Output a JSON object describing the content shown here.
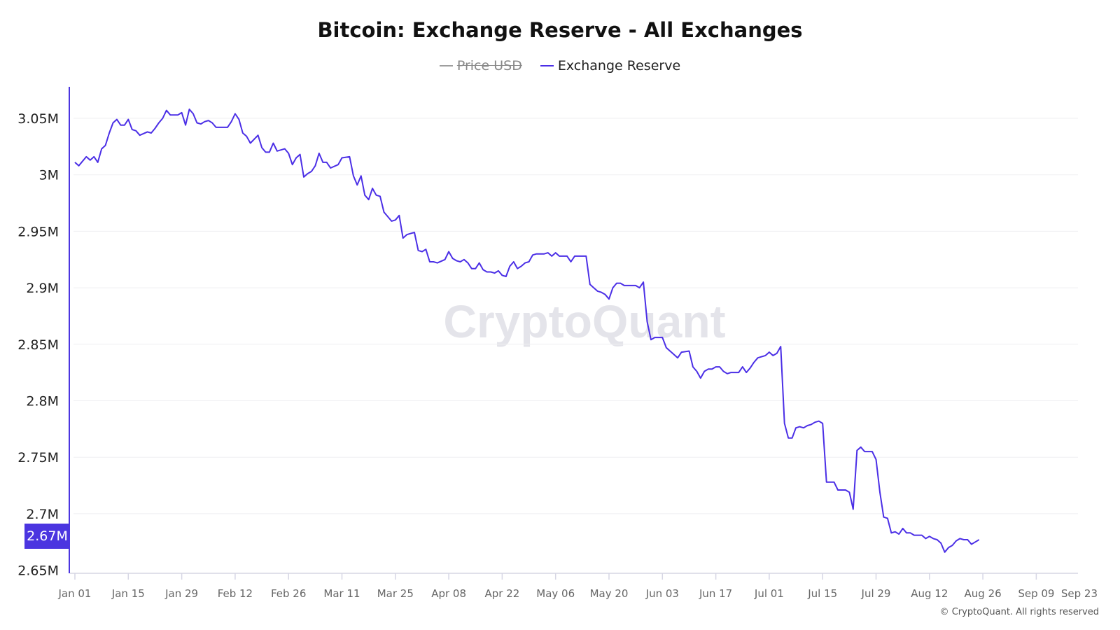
{
  "chart_data": {
    "type": "line",
    "title": "Bitcoin: Exchange Reserve - All Exchanges",
    "legend": [
      {
        "name": "Price USD",
        "color": "#9e9e9e",
        "hidden": true
      },
      {
        "name": "Exchange Reserve",
        "color": "#4b2fe6",
        "hidden": false
      }
    ],
    "legend_placement": "top-center",
    "xlabel": "",
    "ylabel": "",
    "x_ticks": [
      "Jan 01",
      "Jan 15",
      "Jan 29",
      "Feb 12",
      "Feb 26",
      "Mar 11",
      "Mar 25",
      "Apr 08",
      "Apr 22",
      "May 06",
      "May 20",
      "Jun 03",
      "Jun 17",
      "Jul 01",
      "Jul 15",
      "Jul 29",
      "Aug 12",
      "Aug 26",
      "Sep 09",
      "Sep 23"
    ],
    "y_ticks": [
      "2.65M",
      "2.7M",
      "2.75M",
      "2.8M",
      "2.85M",
      "2.9M",
      "2.95M",
      "3M",
      "3.05M"
    ],
    "y_tick_values": [
      2.65,
      2.7,
      2.75,
      2.8,
      2.85,
      2.9,
      2.95,
      3.0,
      3.05
    ],
    "ylim": [
      2.65,
      3.075
    ],
    "xlim": [
      "Jan 01",
      "Sep 20"
    ],
    "y_unit": "M",
    "grid": "horizontal",
    "current_value_label": "2.67M",
    "watermark": "CryptoQuant",
    "copyright": "© CryptoQuant. All rights reserved",
    "series": [
      {
        "name": "Exchange Reserve",
        "color": "#4b2fe6",
        "points": [
          [
            "Jan 01",
            3.011
          ],
          [
            "Jan 02",
            3.008
          ],
          [
            "Jan 04",
            3.016
          ],
          [
            "Jan 05",
            3.013
          ],
          [
            "Jan 06",
            3.016
          ],
          [
            "Jan 07",
            3.011
          ],
          [
            "Jan 08",
            3.023
          ],
          [
            "Jan 09",
            3.026
          ],
          [
            "Jan 10",
            3.037
          ],
          [
            "Jan 11",
            3.046
          ],
          [
            "Jan 12",
            3.049
          ],
          [
            "Jan 13",
            3.044
          ],
          [
            "Jan 14",
            3.044
          ],
          [
            "Jan 15",
            3.049
          ],
          [
            "Jan 16",
            3.04
          ],
          [
            "Jan 17",
            3.039
          ],
          [
            "Jan 18",
            3.035
          ],
          [
            "Jan 20",
            3.038
          ],
          [
            "Jan 21",
            3.037
          ],
          [
            "Jan 22",
            3.041
          ],
          [
            "Jan 23",
            3.046
          ],
          [
            "Jan 24",
            3.05
          ],
          [
            "Jan 25",
            3.057
          ],
          [
            "Jan 26",
            3.053
          ],
          [
            "Jan 28",
            3.053
          ],
          [
            "Jan 29",
            3.055
          ],
          [
            "Jan 30",
            3.044
          ],
          [
            "Jan 31",
            3.058
          ],
          [
            "Feb 01",
            3.054
          ],
          [
            "Feb 02",
            3.046
          ],
          [
            "Feb 03",
            3.045
          ],
          [
            "Feb 04",
            3.047
          ],
          [
            "Feb 05",
            3.048
          ],
          [
            "Feb 06",
            3.046
          ],
          [
            "Feb 07",
            3.042
          ],
          [
            "Feb 09",
            3.042
          ],
          [
            "Feb 10",
            3.042
          ],
          [
            "Feb 11",
            3.047
          ],
          [
            "Feb 12",
            3.054
          ],
          [
            "Feb 13",
            3.049
          ],
          [
            "Feb 14",
            3.037
          ],
          [
            "Feb 15",
            3.034
          ],
          [
            "Feb 16",
            3.028
          ],
          [
            "Feb 18",
            3.035
          ],
          [
            "Feb 19",
            3.024
          ],
          [
            "Feb 20",
            3.02
          ],
          [
            "Feb 21",
            3.02
          ],
          [
            "Feb 22",
            3.028
          ],
          [
            "Feb 23",
            3.021
          ],
          [
            "Feb 25",
            3.023
          ],
          [
            "Feb 26",
            3.019
          ],
          [
            "Feb 27",
            3.009
          ],
          [
            "Feb 28",
            3.015
          ],
          [
            "Feb 29",
            3.018
          ],
          [
            "Mar 01",
            2.998
          ],
          [
            "Mar 02",
            3.001
          ],
          [
            "Mar 03",
            3.003
          ],
          [
            "Mar 04",
            3.008
          ],
          [
            "Mar 05",
            3.019
          ],
          [
            "Mar 06",
            3.011
          ],
          [
            "Mar 07",
            3.011
          ],
          [
            "Mar 08",
            3.006
          ],
          [
            "Mar 10",
            3.009
          ],
          [
            "Mar 11",
            3.015
          ],
          [
            "Mar 13",
            3.016
          ],
          [
            "Mar 14",
            2.999
          ],
          [
            "Mar 15",
            2.991
          ],
          [
            "Mar 16",
            2.999
          ],
          [
            "Mar 17",
            2.982
          ],
          [
            "Mar 18",
            2.978
          ],
          [
            "Mar 19",
            2.988
          ],
          [
            "Mar 20",
            2.982
          ],
          [
            "Mar 21",
            2.981
          ],
          [
            "Mar 22",
            2.967
          ],
          [
            "Mar 23",
            2.963
          ],
          [
            "Mar 24",
            2.959
          ],
          [
            "Mar 25",
            2.96
          ],
          [
            "Mar 26",
            2.964
          ],
          [
            "Mar 27",
            2.944
          ],
          [
            "Mar 28",
            2.947
          ],
          [
            "Mar 29",
            2.948
          ],
          [
            "Mar 30",
            2.949
          ],
          [
            "Mar 31",
            2.933
          ],
          [
            "Apr 01",
            2.932
          ],
          [
            "Apr 02",
            2.934
          ],
          [
            "Apr 03",
            2.923
          ],
          [
            "Apr 04",
            2.923
          ],
          [
            "Apr 05",
            2.922
          ],
          [
            "Apr 07",
            2.925
          ],
          [
            "Apr 08",
            2.932
          ],
          [
            "Apr 09",
            2.926
          ],
          [
            "Apr 10",
            2.924
          ],
          [
            "Apr 11",
            2.923
          ],
          [
            "Apr 12",
            2.925
          ],
          [
            "Apr 13",
            2.922
          ],
          [
            "Apr 14",
            2.917
          ],
          [
            "Apr 15",
            2.917
          ],
          [
            "Apr 16",
            2.922
          ],
          [
            "Apr 17",
            2.916
          ],
          [
            "Apr 18",
            2.914
          ],
          [
            "Apr 19",
            2.914
          ],
          [
            "Apr 20",
            2.913
          ],
          [
            "Apr 21",
            2.915
          ],
          [
            "Apr 22",
            2.911
          ],
          [
            "Apr 23",
            2.91
          ],
          [
            "Apr 24",
            2.919
          ],
          [
            "Apr 25",
            2.923
          ],
          [
            "Apr 26",
            2.917
          ],
          [
            "Apr 27",
            2.919
          ],
          [
            "Apr 28",
            2.922
          ],
          [
            "Apr 29",
            2.923
          ],
          [
            "Apr 30",
            2.929
          ],
          [
            "May 01",
            2.93
          ],
          [
            "May 03",
            2.93
          ],
          [
            "May 04",
            2.931
          ],
          [
            "May 05",
            2.928
          ],
          [
            "May 06",
            2.931
          ],
          [
            "May 07",
            2.928
          ],
          [
            "May 08",
            2.928
          ],
          [
            "May 09",
            2.928
          ],
          [
            "May 10",
            2.923
          ],
          [
            "May 11",
            2.928
          ],
          [
            "May 12",
            2.928
          ],
          [
            "May 13",
            2.928
          ],
          [
            "May 14",
            2.928
          ],
          [
            "May 15",
            2.903
          ],
          [
            "May 16",
            2.9
          ],
          [
            "May 17",
            2.897
          ],
          [
            "May 18",
            2.896
          ],
          [
            "May 19",
            2.894
          ],
          [
            "May 20",
            2.89
          ],
          [
            "May 21",
            2.9
          ],
          [
            "May 22",
            2.904
          ],
          [
            "May 23",
            2.904
          ],
          [
            "May 24",
            2.902
          ],
          [
            "May 25",
            2.902
          ],
          [
            "May 26",
            2.902
          ],
          [
            "May 27",
            2.902
          ],
          [
            "May 28",
            2.9
          ],
          [
            "May 29",
            2.905
          ],
          [
            "May 30",
            2.87
          ],
          [
            "May 31",
            2.854
          ],
          [
            "Jun 01",
            2.856
          ],
          [
            "Jun 03",
            2.856
          ],
          [
            "Jun 04",
            2.847
          ],
          [
            "Jun 05",
            2.844
          ],
          [
            "Jun 06",
            2.841
          ],
          [
            "Jun 07",
            2.838
          ],
          [
            "Jun 08",
            2.843
          ],
          [
            "Jun 10",
            2.844
          ],
          [
            "Jun 11",
            2.83
          ],
          [
            "Jun 12",
            2.826
          ],
          [
            "Jun 13",
            2.82
          ],
          [
            "Jun 14",
            2.826
          ],
          [
            "Jun 15",
            2.828
          ],
          [
            "Jun 16",
            2.828
          ],
          [
            "Jun 17",
            2.83
          ],
          [
            "Jun 18",
            2.83
          ],
          [
            "Jun 19",
            2.826
          ],
          [
            "Jun 20",
            2.824
          ],
          [
            "Jun 21",
            2.825
          ],
          [
            "Jun 23",
            2.825
          ],
          [
            "Jun 24",
            2.83
          ],
          [
            "Jun 25",
            2.825
          ],
          [
            "Jun 26",
            2.829
          ],
          [
            "Jun 27",
            2.834
          ],
          [
            "Jun 28",
            2.838
          ],
          [
            "Jun 29",
            2.839
          ],
          [
            "Jun 30",
            2.84
          ],
          [
            "Jul 01",
            2.843
          ],
          [
            "Jul 02",
            2.84
          ],
          [
            "Jul 03",
            2.842
          ],
          [
            "Jul 04",
            2.848
          ],
          [
            "Jul 05",
            2.78
          ],
          [
            "Jul 06",
            2.767
          ],
          [
            "Jul 07",
            2.767
          ],
          [
            "Jul 08",
            2.776
          ],
          [
            "Jul 09",
            2.777
          ],
          [
            "Jul 10",
            2.776
          ],
          [
            "Jul 11",
            2.778
          ],
          [
            "Jul 12",
            2.779
          ],
          [
            "Jul 13",
            2.781
          ],
          [
            "Jul 14",
            2.782
          ],
          [
            "Jul 15",
            2.78
          ],
          [
            "Jul 16",
            2.728
          ],
          [
            "Jul 17",
            2.728
          ],
          [
            "Jul 18",
            2.728
          ],
          [
            "Jul 19",
            2.721
          ],
          [
            "Jul 20",
            2.721
          ],
          [
            "Jul 21",
            2.721
          ],
          [
            "Jul 22",
            2.719
          ],
          [
            "Jul 23",
            2.704
          ],
          [
            "Jul 24",
            2.756
          ],
          [
            "Jul 25",
            2.759
          ],
          [
            "Jul 26",
            2.755
          ],
          [
            "Jul 27",
            2.755
          ],
          [
            "Jul 28",
            2.755
          ],
          [
            "Jul 29",
            2.748
          ],
          [
            "Jul 30",
            2.719
          ],
          [
            "Jul 31",
            2.697
          ],
          [
            "Aug 01",
            2.696
          ],
          [
            "Aug 02",
            2.683
          ],
          [
            "Aug 03",
            2.684
          ],
          [
            "Aug 04",
            2.682
          ],
          [
            "Aug 05",
            2.687
          ],
          [
            "Aug 06",
            2.683
          ],
          [
            "Aug 07",
            2.683
          ],
          [
            "Aug 08",
            2.681
          ],
          [
            "Aug 09",
            2.681
          ],
          [
            "Aug 10",
            2.681
          ],
          [
            "Aug 11",
            2.678
          ],
          [
            "Aug 12",
            2.68
          ],
          [
            "Aug 13",
            2.678
          ],
          [
            "Aug 14",
            2.677
          ],
          [
            "Aug 15",
            2.674
          ],
          [
            "Aug 16",
            2.666
          ],
          [
            "Aug 17",
            2.67
          ],
          [
            "Aug 18",
            2.672
          ],
          [
            "Aug 19",
            2.676
          ],
          [
            "Aug 20",
            2.678
          ],
          [
            "Aug 21",
            2.677
          ],
          [
            "Aug 22",
            2.677
          ],
          [
            "Aug 23",
            2.673
          ],
          [
            "Aug 24",
            2.675
          ],
          [
            "Aug 25",
            2.677
          ]
        ]
      }
    ]
  }
}
